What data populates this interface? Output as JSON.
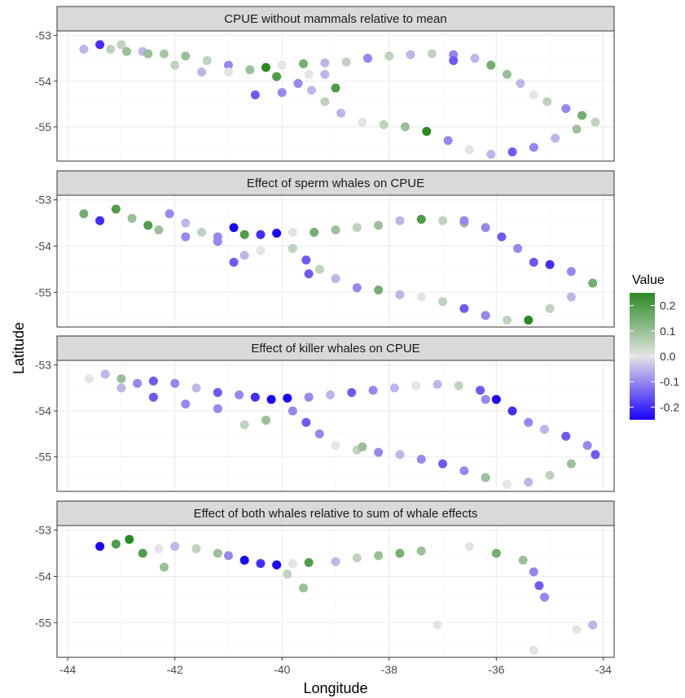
{
  "chart_data": {
    "type": "scatter",
    "xlabel": "Longitude",
    "ylabel": "Latitude",
    "xlim": [
      -44.2,
      -33.8
    ],
    "ylim": [
      -55.75,
      -52.9
    ],
    "x_ticks": [
      -44,
      -42,
      -40,
      -38,
      -36,
      -34
    ],
    "x_tick_labels": [
      "-44",
      "-42",
      "-40",
      "-38",
      "-36",
      "-34"
    ],
    "y_ticks": [
      -53,
      -54,
      -55
    ],
    "y_tick_labels": [
      "-53",
      "-54",
      "-55"
    ],
    "grid": true,
    "legend": {
      "title": "Value",
      "placement": "right",
      "type": "colorbar",
      "range": [
        -0.25,
        0.25
      ],
      "ticks": [
        0.2,
        0.1,
        0.0,
        -0.1,
        -0.2
      ],
      "tick_labels": [
        "0.2",
        "0.1",
        "0.0",
        "-0.1",
        "-0.2"
      ],
      "colors": {
        "low": "#1a00ff",
        "mid": "#e4e4e4",
        "high": "#2a8a22"
      }
    },
    "panels": [
      {
        "title": "CPUE without mammals relative to mean",
        "points": [
          [
            -43.4,
            -53.2,
            -0.2
          ],
          [
            -43.2,
            -53.3,
            0.05
          ],
          [
            -42.9,
            -53.35,
            0.1
          ],
          [
            -42.6,
            -53.35,
            -0.05
          ],
          [
            -42.2,
            -53.4,
            0.08
          ],
          [
            -41.8,
            -53.45,
            0.1
          ],
          [
            -41.4,
            -53.55,
            0.05
          ],
          [
            -41.0,
            -53.65,
            -0.1
          ],
          [
            -40.6,
            -53.75,
            0.1
          ],
          [
            -40.3,
            -53.7,
            0.25
          ],
          [
            -40.0,
            -53.65,
            0.0
          ],
          [
            -39.6,
            -53.62,
            0.15
          ],
          [
            -39.2,
            -53.6,
            -0.05
          ],
          [
            -38.8,
            -53.58,
            0.05
          ],
          [
            -38.4,
            -53.5,
            -0.1
          ],
          [
            -38.0,
            -53.45,
            0.05
          ],
          [
            -37.6,
            -53.42,
            -0.05
          ],
          [
            -37.2,
            -53.4,
            0.05
          ],
          [
            -36.8,
            -53.42,
            -0.1
          ],
          [
            -36.4,
            -53.5,
            -0.05
          ],
          [
            -36.1,
            -53.65,
            0.15
          ],
          [
            -35.8,
            -53.85,
            0.1
          ],
          [
            -35.55,
            -54.05,
            -0.05
          ],
          [
            -35.3,
            -54.3,
            0.0
          ],
          [
            -35.05,
            -54.45,
            0.05
          ],
          [
            -34.7,
            -54.6,
            -0.1
          ],
          [
            -34.4,
            -54.75,
            0.15
          ],
          [
            -34.15,
            -54.9,
            0.05
          ],
          [
            -34.5,
            -55.05,
            0.1
          ],
          [
            -34.9,
            -55.25,
            -0.05
          ],
          [
            -35.3,
            -55.45,
            -0.1
          ],
          [
            -35.7,
            -55.55,
            -0.15
          ],
          [
            -36.1,
            -55.6,
            -0.05
          ],
          [
            -36.5,
            -55.5,
            0.0
          ],
          [
            -36.9,
            -55.3,
            -0.1
          ],
          [
            -37.3,
            -55.1,
            0.25
          ],
          [
            -37.7,
            -55.0,
            0.1
          ],
          [
            -38.1,
            -54.95,
            0.05
          ],
          [
            -38.5,
            -54.9,
            0.0
          ],
          [
            -38.9,
            -54.7,
            -0.05
          ],
          [
            -39.2,
            -54.45,
            0.05
          ],
          [
            -39.45,
            -54.2,
            -0.05
          ],
          [
            -39.7,
            -54.05,
            -0.1
          ],
          [
            -39.5,
            -53.85,
            0.0
          ],
          [
            -39.2,
            -53.85,
            -0.05
          ],
          [
            -40.0,
            -54.25,
            -0.1
          ],
          [
            -40.5,
            -54.3,
            -0.15
          ],
          [
            -41.0,
            -53.8,
            0.0
          ],
          [
            -41.5,
            -53.8,
            -0.05
          ],
          [
            -42.0,
            -53.65,
            0.05
          ],
          [
            -42.5,
            -53.4,
            0.1
          ],
          [
            -43.0,
            -53.2,
            0.05
          ],
          [
            -43.7,
            -53.3,
            -0.05
          ],
          [
            -40.1,
            -53.9,
            0.2
          ],
          [
            -39.0,
            -54.15,
            0.2
          ],
          [
            -36.8,
            -53.55,
            -0.15
          ]
        ]
      },
      {
        "title": "Effect of sperm whales on CPUE",
        "points": [
          [
            -43.7,
            -53.3,
            0.15
          ],
          [
            -43.4,
            -53.45,
            -0.2
          ],
          [
            -43.1,
            -53.2,
            0.2
          ],
          [
            -42.8,
            -53.4,
            0.1
          ],
          [
            -42.5,
            -53.55,
            0.2
          ],
          [
            -42.1,
            -53.3,
            -0.1
          ],
          [
            -41.8,
            -53.5,
            -0.05
          ],
          [
            -41.5,
            -53.7,
            0.05
          ],
          [
            -41.2,
            -53.8,
            -0.1
          ],
          [
            -40.9,
            -53.6,
            -0.25
          ],
          [
            -40.7,
            -53.75,
            0.2
          ],
          [
            -40.4,
            -53.75,
            -0.2
          ],
          [
            -40.1,
            -53.72,
            -0.25
          ],
          [
            -39.8,
            -53.7,
            0.0
          ],
          [
            -39.4,
            -53.7,
            0.15
          ],
          [
            -39.0,
            -53.65,
            0.1
          ],
          [
            -38.6,
            -53.6,
            0.05
          ],
          [
            -38.2,
            -53.55,
            0.1
          ],
          [
            -37.8,
            -53.45,
            -0.05
          ],
          [
            -37.4,
            -53.42,
            0.2
          ],
          [
            -37.0,
            -53.45,
            0.05
          ],
          [
            -36.6,
            -53.5,
            0.1
          ],
          [
            -36.2,
            -53.6,
            -0.1
          ],
          [
            -35.9,
            -53.8,
            -0.15
          ],
          [
            -35.6,
            -54.05,
            -0.1
          ],
          [
            -35.3,
            -54.35,
            -0.15
          ],
          [
            -35.0,
            -54.4,
            -0.2
          ],
          [
            -34.6,
            -54.55,
            -0.1
          ],
          [
            -34.2,
            -54.8,
            0.15
          ],
          [
            -34.6,
            -55.1,
            -0.05
          ],
          [
            -35.0,
            -55.35,
            0.05
          ],
          [
            -35.4,
            -55.6,
            0.25
          ],
          [
            -35.8,
            -55.6,
            0.05
          ],
          [
            -36.2,
            -55.5,
            -0.1
          ],
          [
            -36.6,
            -55.35,
            -0.15
          ],
          [
            -37.0,
            -55.2,
            0.05
          ],
          [
            -37.4,
            -55.1,
            0.0
          ],
          [
            -37.8,
            -55.05,
            -0.05
          ],
          [
            -38.2,
            -54.95,
            0.15
          ],
          [
            -38.6,
            -54.9,
            -0.1
          ],
          [
            -39.0,
            -54.7,
            -0.05
          ],
          [
            -39.3,
            -54.5,
            0.05
          ],
          [
            -39.55,
            -54.3,
            -0.15
          ],
          [
            -39.8,
            -54.05,
            0.05
          ],
          [
            -40.4,
            -54.1,
            0.0
          ],
          [
            -40.7,
            -54.2,
            -0.05
          ],
          [
            -41.2,
            -53.9,
            -0.1
          ],
          [
            -41.8,
            -53.8,
            -0.1
          ],
          [
            -42.3,
            -53.65,
            0.1
          ],
          [
            -40.9,
            -54.35,
            -0.15
          ],
          [
            -39.5,
            -54.6,
            -0.15
          ],
          [
            -36.6,
            -53.45,
            -0.1
          ]
        ]
      },
      {
        "title": "Effect of killer whales on CPUE",
        "points": [
          [
            -43.6,
            -53.3,
            0.0
          ],
          [
            -43.3,
            -53.2,
            -0.05
          ],
          [
            -43.0,
            -53.3,
            0.1
          ],
          [
            -42.7,
            -53.4,
            -0.1
          ],
          [
            -42.4,
            -53.35,
            -0.15
          ],
          [
            -42.0,
            -53.4,
            -0.1
          ],
          [
            -41.6,
            -53.5,
            -0.05
          ],
          [
            -41.2,
            -53.6,
            -0.15
          ],
          [
            -40.8,
            -53.65,
            -0.1
          ],
          [
            -40.5,
            -53.7,
            -0.2
          ],
          [
            -40.2,
            -53.75,
            -0.25
          ],
          [
            -39.9,
            -53.72,
            -0.25
          ],
          [
            -39.5,
            -53.7,
            -0.1
          ],
          [
            -39.1,
            -53.65,
            -0.05
          ],
          [
            -38.7,
            -53.6,
            -0.15
          ],
          [
            -38.3,
            -53.55,
            -0.1
          ],
          [
            -37.9,
            -53.5,
            -0.05
          ],
          [
            -37.5,
            -53.45,
            0.0
          ],
          [
            -37.1,
            -53.42,
            -0.05
          ],
          [
            -36.7,
            -53.45,
            0.05
          ],
          [
            -36.3,
            -53.55,
            -0.15
          ],
          [
            -36.0,
            -53.75,
            -0.25
          ],
          [
            -35.7,
            -54.0,
            -0.2
          ],
          [
            -35.4,
            -54.25,
            -0.1
          ],
          [
            -35.1,
            -54.4,
            -0.05
          ],
          [
            -34.7,
            -54.55,
            -0.15
          ],
          [
            -34.3,
            -54.75,
            -0.1
          ],
          [
            -34.15,
            -54.95,
            -0.15
          ],
          [
            -34.6,
            -55.15,
            0.1
          ],
          [
            -35.0,
            -55.4,
            0.05
          ],
          [
            -35.4,
            -55.55,
            -0.05
          ],
          [
            -35.8,
            -55.6,
            0.0
          ],
          [
            -36.2,
            -55.45,
            0.1
          ],
          [
            -36.6,
            -55.3,
            -0.1
          ],
          [
            -37.0,
            -55.15,
            -0.15
          ],
          [
            -37.4,
            -55.05,
            -0.1
          ],
          [
            -37.8,
            -54.95,
            -0.05
          ],
          [
            -38.2,
            -54.9,
            -0.1
          ],
          [
            -38.6,
            -54.85,
            0.05
          ],
          [
            -39.0,
            -54.75,
            0.0
          ],
          [
            -39.3,
            -54.5,
            -0.1
          ],
          [
            -39.55,
            -54.25,
            -0.15
          ],
          [
            -39.8,
            -54.0,
            -0.1
          ],
          [
            -40.3,
            -54.2,
            0.1
          ],
          [
            -40.7,
            -54.3,
            0.05
          ],
          [
            -41.2,
            -53.95,
            -0.1
          ],
          [
            -41.8,
            -53.85,
            -0.1
          ],
          [
            -42.4,
            -53.7,
            -0.15
          ],
          [
            -43.0,
            -53.5,
            -0.05
          ],
          [
            -36.2,
            -53.75,
            -0.1
          ],
          [
            -38.5,
            -54.78,
            0.1
          ]
        ]
      },
      {
        "title": "Effect of both whales relative to sum of whale effects",
        "points": [
          [
            -43.4,
            -53.35,
            -0.25
          ],
          [
            -43.1,
            -53.3,
            0.2
          ],
          [
            -42.85,
            -53.2,
            0.25
          ],
          [
            -42.6,
            -53.5,
            0.2
          ],
          [
            -42.3,
            -53.4,
            0.0
          ],
          [
            -42.0,
            -53.35,
            -0.05
          ],
          [
            -41.6,
            -53.4,
            0.05
          ],
          [
            -41.2,
            -53.5,
            0.1
          ],
          [
            -41.0,
            -53.55,
            -0.1
          ],
          [
            -40.7,
            -53.65,
            -0.25
          ],
          [
            -40.4,
            -53.72,
            -0.2
          ],
          [
            -40.1,
            -53.75,
            -0.25
          ],
          [
            -39.8,
            -53.72,
            0.0
          ],
          [
            -39.5,
            -53.7,
            0.2
          ],
          [
            -39.0,
            -53.68,
            -0.05
          ],
          [
            -38.6,
            -53.6,
            0.05
          ],
          [
            -38.2,
            -53.55,
            0.1
          ],
          [
            -37.8,
            -53.5,
            0.15
          ],
          [
            -37.4,
            -53.45,
            0.1
          ],
          [
            -36.5,
            -53.35,
            0.0
          ],
          [
            -36.0,
            -53.5,
            0.15
          ],
          [
            -35.5,
            -53.65,
            0.1
          ],
          [
            -35.3,
            -53.9,
            -0.1
          ],
          [
            -35.2,
            -54.2,
            -0.15
          ],
          [
            -35.1,
            -54.45,
            -0.1
          ],
          [
            -39.6,
            -54.25,
            0.1
          ],
          [
            -39.9,
            -53.95,
            0.05
          ],
          [
            -37.1,
            -55.05,
            0.0
          ],
          [
            -35.3,
            -55.6,
            0.0
          ],
          [
            -34.2,
            -55.05,
            -0.05
          ],
          [
            -34.5,
            -55.15,
            0.0
          ],
          [
            -42.2,
            -53.8,
            0.1
          ]
        ]
      }
    ]
  }
}
